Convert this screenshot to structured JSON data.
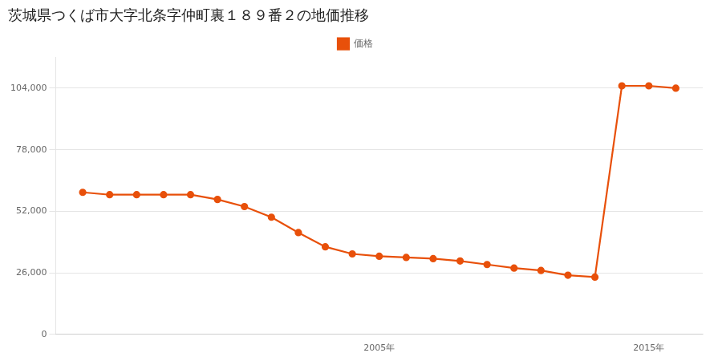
{
  "chart_data": {
    "type": "line",
    "title": "茨城県つくば市大字北条字仲町裏１８９番２の地価推移",
    "x": [
      1994,
      1995,
      1996,
      1997,
      1998,
      1999,
      2000,
      2001,
      2002,
      2003,
      2004,
      2005,
      2006,
      2007,
      2008,
      2009,
      2010,
      2011,
      2012,
      2013,
      2014,
      2015,
      2016
    ],
    "series": [
      {
        "name": "価格",
        "color": "#E8500A",
        "marker": "circle",
        "values": [
          60000,
          59000,
          59000,
          59000,
          59000,
          57000,
          54000,
          49500,
          43000,
          37000,
          34000,
          33000,
          32500,
          32000,
          31000,
          29500,
          28000,
          27000,
          25000,
          24200,
          105000,
          105000,
          104000
        ]
      }
    ],
    "xlim": [
      1993,
      2017
    ],
    "xticks": [
      {
        "value": 2005,
        "label": "2005年"
      },
      {
        "value": 2015,
        "label": "2015年"
      }
    ],
    "ylim": [
      0,
      117000
    ],
    "yticks": [
      0,
      {
        "value": 26000,
        "label": "26,000"
      },
      {
        "value": 52000,
        "label": "52,000"
      },
      {
        "value": 78000,
        "label": "78,000"
      },
      {
        "value": 104000,
        "label": "104,000"
      }
    ],
    "grid": "y",
    "legend": "top"
  }
}
